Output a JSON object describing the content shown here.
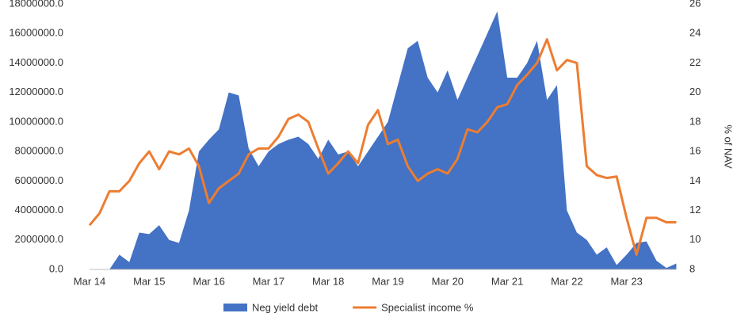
{
  "chart_data": {
    "type": "area_line",
    "categories": [
      "Mar 14",
      null,
      null,
      null,
      null,
      null,
      "Mar 15",
      null,
      null,
      null,
      null,
      null,
      "Mar 16",
      null,
      null,
      null,
      null,
      null,
      "Mar 17",
      null,
      null,
      null,
      null,
      null,
      "Mar 18",
      null,
      null,
      null,
      null,
      null,
      "Mar 19",
      null,
      null,
      null,
      null,
      null,
      "Mar 20",
      null,
      null,
      null,
      null,
      null,
      "Mar 21",
      null,
      null,
      null,
      null,
      null,
      "Mar 22",
      null,
      null,
      null,
      null,
      null,
      "Mar 23",
      null,
      null,
      null,
      null,
      null
    ],
    "series": [
      {
        "name": "Neg yield debt",
        "color": "#4472c4",
        "kind": "area",
        "values": [
          0,
          0,
          0,
          1000000,
          500000,
          2500000,
          2400000,
          3000000,
          2000000,
          1800000,
          4000000,
          8000000,
          8800000,
          9500000,
          12000000,
          11800000,
          8200000,
          7000000,
          8000000,
          8500000,
          8800000,
          9000000,
          8500000,
          7500000,
          8800000,
          7800000,
          8000000,
          7000000,
          8000000,
          9000000,
          10000000,
          12500000,
          15000000,
          15500000,
          13000000,
          12000000,
          13500000,
          11500000,
          13000000,
          14500000,
          16000000,
          17500000,
          13000000,
          13000000,
          14000000,
          15500000,
          11500000,
          12500000,
          4000000,
          2500000,
          2000000,
          1000000,
          1500000,
          300000,
          1000000,
          1800000,
          1900000,
          600000,
          100000,
          400000
        ]
      },
      {
        "name": "Specialist income %",
        "color": "#ed7d31",
        "kind": "line",
        "axis": "y2",
        "values": [
          11.0,
          11.8,
          13.3,
          13.3,
          14.0,
          15.2,
          16.0,
          14.8,
          16.0,
          15.8,
          16.2,
          15.0,
          12.5,
          13.5,
          14.0,
          14.5,
          15.8,
          16.2,
          16.2,
          17.0,
          18.2,
          18.5,
          18.0,
          16.2,
          14.5,
          15.2,
          16.0,
          15.2,
          17.8,
          18.8,
          16.5,
          16.8,
          15.0,
          14.0,
          14.5,
          14.8,
          14.5,
          15.5,
          17.5,
          17.3,
          18.0,
          19.0,
          19.2,
          20.5,
          21.2,
          22.0,
          23.6,
          21.5,
          22.2,
          22.0,
          15.0,
          14.4,
          14.2,
          14.3,
          11.5,
          9.0,
          11.5,
          11.5,
          11.2,
          11.2
        ]
      }
    ],
    "ylim": [
      0,
      18000000
    ],
    "yticks": [
      {
        "value": 0,
        "label": "0.0"
      },
      {
        "value": 2000000,
        "label": "2000000.0"
      },
      {
        "value": 4000000,
        "label": "4000000.0"
      },
      {
        "value": 6000000,
        "label": "6000000.0"
      },
      {
        "value": 8000000,
        "label": "8000000.0"
      },
      {
        "value": 10000000,
        "label": "10000000.0"
      },
      {
        "value": 12000000,
        "label": "12000000.0"
      },
      {
        "value": 14000000,
        "label": "14000000.0"
      },
      {
        "value": 16000000,
        "label": "16000000.0"
      },
      {
        "value": 18000000,
        "label": "18000000.0"
      }
    ],
    "y2lim": [
      8,
      26
    ],
    "y2ticks": [
      8,
      10,
      12,
      14,
      16,
      18,
      20,
      22,
      24,
      26
    ],
    "y2label": "% of NAV",
    "legend": "bottom"
  }
}
